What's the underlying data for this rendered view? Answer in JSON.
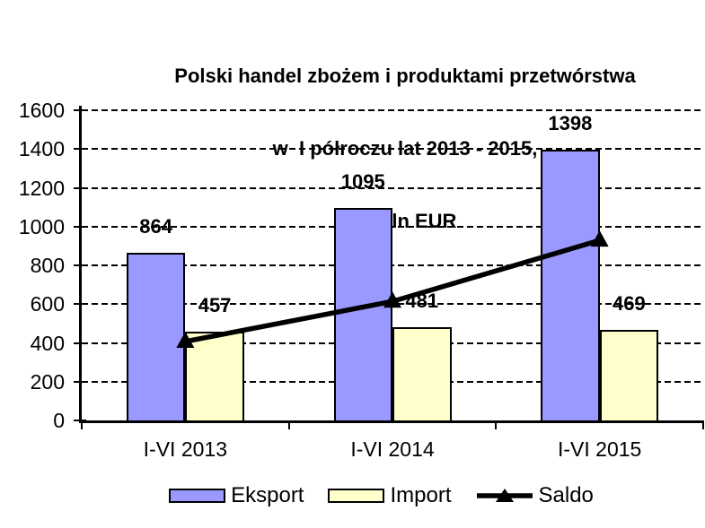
{
  "title": {
    "lines": [
      "Polski handel zbożem i produktami przetwórstwa",
      "w  I półroczu lat 2013 - 2015,",
      "w mln EUR"
    ]
  },
  "chart_data": {
    "type": "bar",
    "subtype": "grouped-bars-with-line-overlay",
    "title": "Polski handel zbożem i produktami przetwórstwa w I półroczu lat 2013 - 2015, w mln EUR",
    "categories": [
      "I-VI 2013",
      "I-VI 2014",
      "I-VI 2015"
    ],
    "series": [
      {
        "name": "Eksport",
        "type": "bar",
        "color": "#9999FF",
        "values": [
          864,
          1095,
          1398
        ],
        "data_labels": true
      },
      {
        "name": "Import",
        "type": "bar",
        "color": "#FFFFCC",
        "values": [
          457,
          481,
          469
        ],
        "data_labels": true
      },
      {
        "name": "Saldo",
        "type": "line",
        "color": "#000000",
        "marker": "triangle",
        "values": [
          407,
          614,
          929
        ],
        "data_labels": false
      }
    ],
    "xlabel": "",
    "ylabel": "",
    "ylim": [
      0,
      1600
    ],
    "ytick_step": 200,
    "grid": "horizontal-dashed",
    "legend_position": "bottom",
    "bar_border_color": "#000000",
    "background_color": "#FFFFFF"
  },
  "legend": {
    "items": [
      {
        "label": "Eksport"
      },
      {
        "label": "Import"
      },
      {
        "label": "Saldo"
      }
    ]
  }
}
